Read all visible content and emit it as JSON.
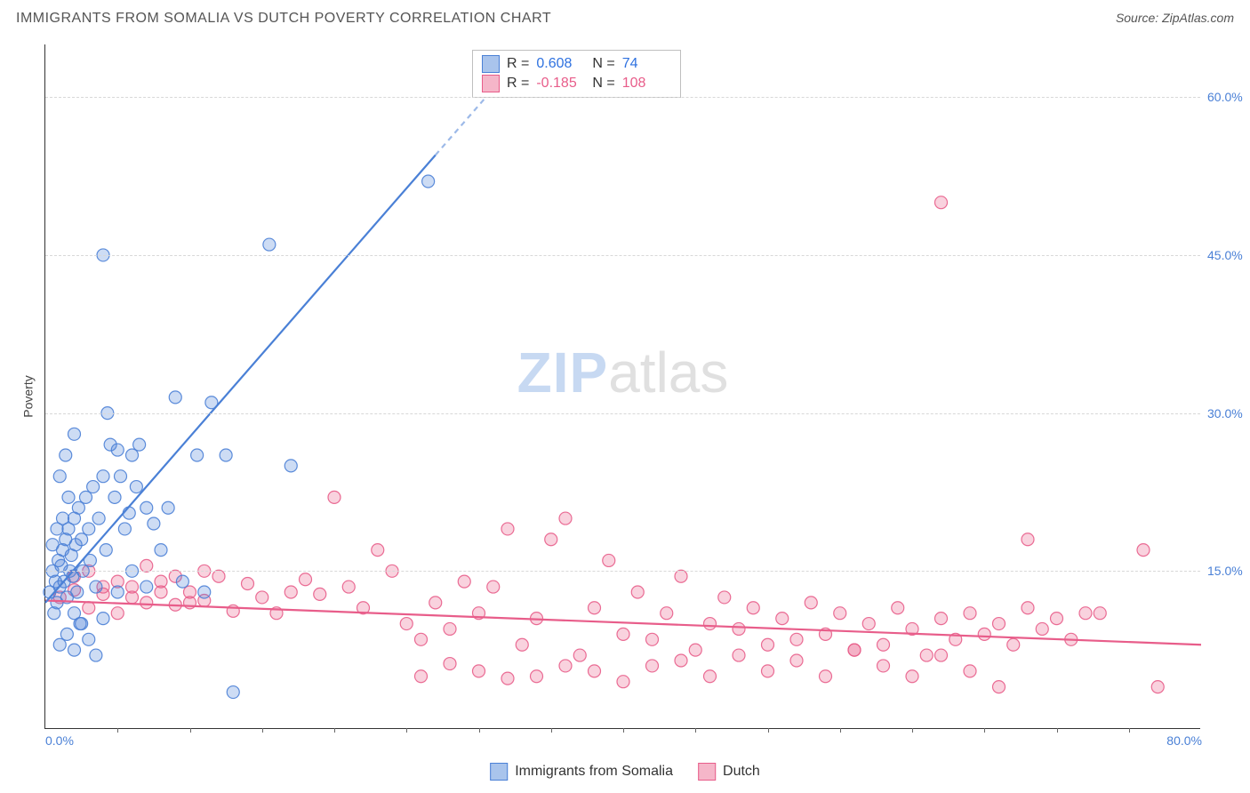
{
  "title": "IMMIGRANTS FROM SOMALIA VS DUTCH POVERTY CORRELATION CHART",
  "source_label": "Source: ZipAtlas.com",
  "watermark": {
    "part1": "ZIP",
    "part2": "atlas"
  },
  "y_axis_label": "Poverty",
  "chart": {
    "type": "scatter-correlation",
    "background_color": "#ffffff",
    "grid_color": "#d8d8d8",
    "axis_color": "#333333",
    "xlim": [
      0,
      80
    ],
    "ylim": [
      0,
      65
    ],
    "x_ticks_minor_step": 5,
    "y_ticks": [
      15,
      30,
      45,
      60
    ],
    "y_tick_labels": [
      "15.0%",
      "30.0%",
      "45.0%",
      "60.0%"
    ],
    "x_tick_labels": {
      "min": "0.0%",
      "max": "80.0%"
    },
    "tick_label_color": "#4a80d6",
    "label_fontsize": 14,
    "marker_radius": 7,
    "marker_fill_opacity": 0.28,
    "marker_stroke_opacity": 0.9,
    "line_width": 2.2
  },
  "series": {
    "somalia": {
      "label": "Immigrants from Somalia",
      "color": "#4a80d6",
      "fill": "#a9c4ec",
      "R": "0.608",
      "N": "74",
      "trend": {
        "x1": 0,
        "y1": 12,
        "x2": 30.5,
        "y2": 60,
        "dashed_from_x": 27
      },
      "points": [
        [
          0.3,
          13
        ],
        [
          0.5,
          15
        ],
        [
          0.6,
          11
        ],
        [
          0.7,
          14
        ],
        [
          0.8,
          12
        ],
        [
          0.9,
          16
        ],
        [
          1.0,
          13.5
        ],
        [
          1.1,
          15.5
        ],
        [
          1.2,
          17
        ],
        [
          1.3,
          14
        ],
        [
          1.4,
          18
        ],
        [
          1.5,
          12.5
        ],
        [
          1.6,
          19
        ],
        [
          1.7,
          15
        ],
        [
          1.8,
          16.5
        ],
        [
          1.9,
          14.5
        ],
        [
          2.0,
          20
        ],
        [
          2.1,
          17.5
        ],
        [
          2.2,
          13
        ],
        [
          2.3,
          21
        ],
        [
          2.5,
          18
        ],
        [
          2.6,
          15
        ],
        [
          2.8,
          22
        ],
        [
          3.0,
          19
        ],
        [
          3.1,
          16
        ],
        [
          3.3,
          23
        ],
        [
          3.5,
          13.5
        ],
        [
          3.7,
          20
        ],
        [
          4.0,
          24
        ],
        [
          4.2,
          17
        ],
        [
          4.5,
          27
        ],
        [
          4.8,
          22
        ],
        [
          5.0,
          26.5
        ],
        [
          5.2,
          24
        ],
        [
          5.5,
          19
        ],
        [
          5.8,
          20.5
        ],
        [
          6.0,
          26
        ],
        [
          6.3,
          23
        ],
        [
          6.5,
          27
        ],
        [
          7.0,
          21
        ],
        [
          2.0,
          11
        ],
        [
          2.4,
          10
        ],
        [
          3.0,
          8.5
        ],
        [
          3.5,
          7
        ],
        [
          4.0,
          10.5
        ],
        [
          5.0,
          13
        ],
        [
          6.0,
          15
        ],
        [
          7.0,
          13.5
        ],
        [
          4.3,
          30
        ],
        [
          4.0,
          45
        ],
        [
          9.0,
          31.5
        ],
        [
          11.5,
          31
        ],
        [
          10.5,
          26
        ],
        [
          12.5,
          26
        ],
        [
          9.5,
          14
        ],
        [
          11.0,
          13
        ],
        [
          13.0,
          3.5
        ],
        [
          17.0,
          25
        ],
        [
          15.5,
          46
        ],
        [
          26.5,
          52
        ],
        [
          7.5,
          19.5
        ],
        [
          8.0,
          17
        ],
        [
          8.5,
          21
        ],
        [
          1.0,
          8
        ],
        [
          1.5,
          9
        ],
        [
          2.0,
          7.5
        ],
        [
          2.5,
          10
        ],
        [
          0.5,
          17.5
        ],
        [
          0.8,
          19
        ],
        [
          1.2,
          20
        ],
        [
          1.6,
          22
        ],
        [
          1.0,
          24
        ],
        [
          1.4,
          26
        ],
        [
          2.0,
          28
        ]
      ]
    },
    "dutch": {
      "label": "Dutch",
      "color": "#e85d8a",
      "fill": "#f5b6c9",
      "R": "-0.185",
      "N": "108",
      "trend": {
        "x1": 0,
        "y1": 12.2,
        "x2": 80,
        "y2": 8.0
      },
      "points": [
        [
          1,
          12.5
        ],
        [
          2,
          13.2
        ],
        [
          3,
          11.5
        ],
        [
          4,
          12.8
        ],
        [
          5,
          11
        ],
        [
          6,
          13.5
        ],
        [
          7,
          12
        ],
        [
          8,
          14
        ],
        [
          9,
          11.8
        ],
        [
          10,
          13
        ],
        [
          11,
          12.2
        ],
        [
          12,
          14.5
        ],
        [
          13,
          11.2
        ],
        [
          14,
          13.8
        ],
        [
          15,
          12.5
        ],
        [
          16,
          11
        ],
        [
          17,
          13
        ],
        [
          18,
          14.2
        ],
        [
          19,
          12.8
        ],
        [
          20,
          22
        ],
        [
          21,
          13.5
        ],
        [
          22,
          11.5
        ],
        [
          23,
          17
        ],
        [
          24,
          15
        ],
        [
          25,
          10
        ],
        [
          26,
          8.5
        ],
        [
          27,
          12
        ],
        [
          28,
          9.5
        ],
        [
          29,
          14
        ],
        [
          30,
          11
        ],
        [
          31,
          13.5
        ],
        [
          32,
          19
        ],
        [
          33,
          8
        ],
        [
          34,
          10.5
        ],
        [
          35,
          18
        ],
        [
          36,
          20
        ],
        [
          37,
          7
        ],
        [
          38,
          11.5
        ],
        [
          39,
          16
        ],
        [
          40,
          9
        ],
        [
          41,
          13
        ],
        [
          42,
          8.5
        ],
        [
          43,
          11
        ],
        [
          44,
          14.5
        ],
        [
          45,
          7.5
        ],
        [
          46,
          10
        ],
        [
          47,
          12.5
        ],
        [
          48,
          9.5
        ],
        [
          49,
          11.5
        ],
        [
          50,
          8
        ],
        [
          34,
          5
        ],
        [
          36,
          6
        ],
        [
          38,
          5.5
        ],
        [
          40,
          4.5
        ],
        [
          42,
          6
        ],
        [
          32,
          4.8
        ],
        [
          30,
          5.5
        ],
        [
          28,
          6.2
        ],
        [
          26,
          5
        ],
        [
          51,
          10.5
        ],
        [
          52,
          8.5
        ],
        [
          53,
          12
        ],
        [
          54,
          9
        ],
        [
          55,
          11
        ],
        [
          56,
          7.5
        ],
        [
          57,
          10
        ],
        [
          58,
          8
        ],
        [
          59,
          11.5
        ],
        [
          60,
          9.5
        ],
        [
          61,
          7
        ],
        [
          62,
          10.5
        ],
        [
          63,
          8.5
        ],
        [
          64,
          11
        ],
        [
          65,
          9
        ],
        [
          66,
          10
        ],
        [
          67,
          8
        ],
        [
          68,
          11.5
        ],
        [
          69,
          9.5
        ],
        [
          70,
          10.5
        ],
        [
          71,
          8.5
        ],
        [
          72,
          11
        ],
        [
          44,
          6.5
        ],
        [
          46,
          5
        ],
        [
          48,
          7
        ],
        [
          50,
          5.5
        ],
        [
          52,
          6.5
        ],
        [
          54,
          5
        ],
        [
          56,
          7.5
        ],
        [
          58,
          6
        ],
        [
          60,
          5
        ],
        [
          62,
          7
        ],
        [
          64,
          5.5
        ],
        [
          66,
          4
        ],
        [
          68,
          18
        ],
        [
          73,
          11
        ],
        [
          76,
          17
        ],
        [
          77,
          4
        ],
        [
          62,
          50
        ],
        [
          2,
          14.5
        ],
        [
          3,
          15
        ],
        [
          4,
          13.5
        ],
        [
          5,
          14
        ],
        [
          6,
          12.5
        ],
        [
          7,
          15.5
        ],
        [
          8,
          13
        ],
        [
          9,
          14.5
        ],
        [
          10,
          12
        ],
        [
          11,
          15
        ]
      ]
    }
  },
  "legend_corr": {
    "R_label": "R =",
    "N_label": "N ="
  },
  "bottom_legend_order": [
    "somalia",
    "dutch"
  ]
}
